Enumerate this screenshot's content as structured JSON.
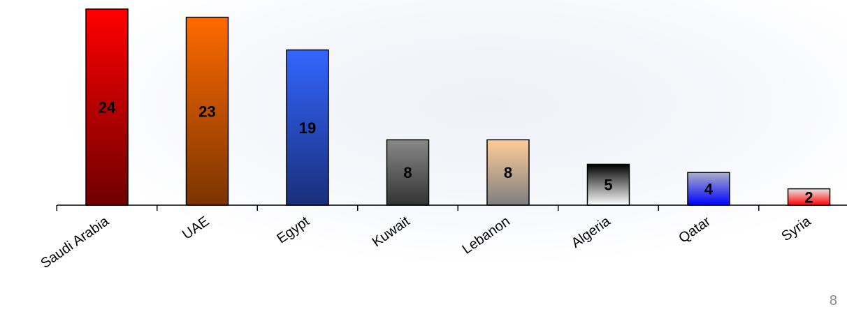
{
  "chart_data": {
    "type": "bar",
    "title": "",
    "xlabel": "",
    "ylabel": "",
    "categories": [
      "Saudi Arabia",
      "UAE",
      "Egypt",
      "Kuwait",
      "Lebanon",
      "Algeria",
      "Qatar",
      "Syria"
    ],
    "values": [
      24,
      23,
      19,
      8,
      8,
      5,
      4,
      2
    ],
    "ylim": [
      0,
      24
    ],
    "grid": false,
    "legend": "none",
    "bar_gradients": [
      [
        "#ff0000",
        "#6e0000"
      ],
      [
        "#ff6a00",
        "#7a3400"
      ],
      [
        "#3366ff",
        "#1a2f7a"
      ],
      [
        "#888888",
        "#333333"
      ],
      [
        "#ffcc99",
        "#7f7f7f"
      ],
      [
        "#000000",
        "#ffffff"
      ],
      [
        "#aab0c8",
        "#0000ff"
      ],
      [
        "#e8e8e8",
        "#ff0000"
      ]
    ]
  },
  "page": {
    "number": "8"
  }
}
